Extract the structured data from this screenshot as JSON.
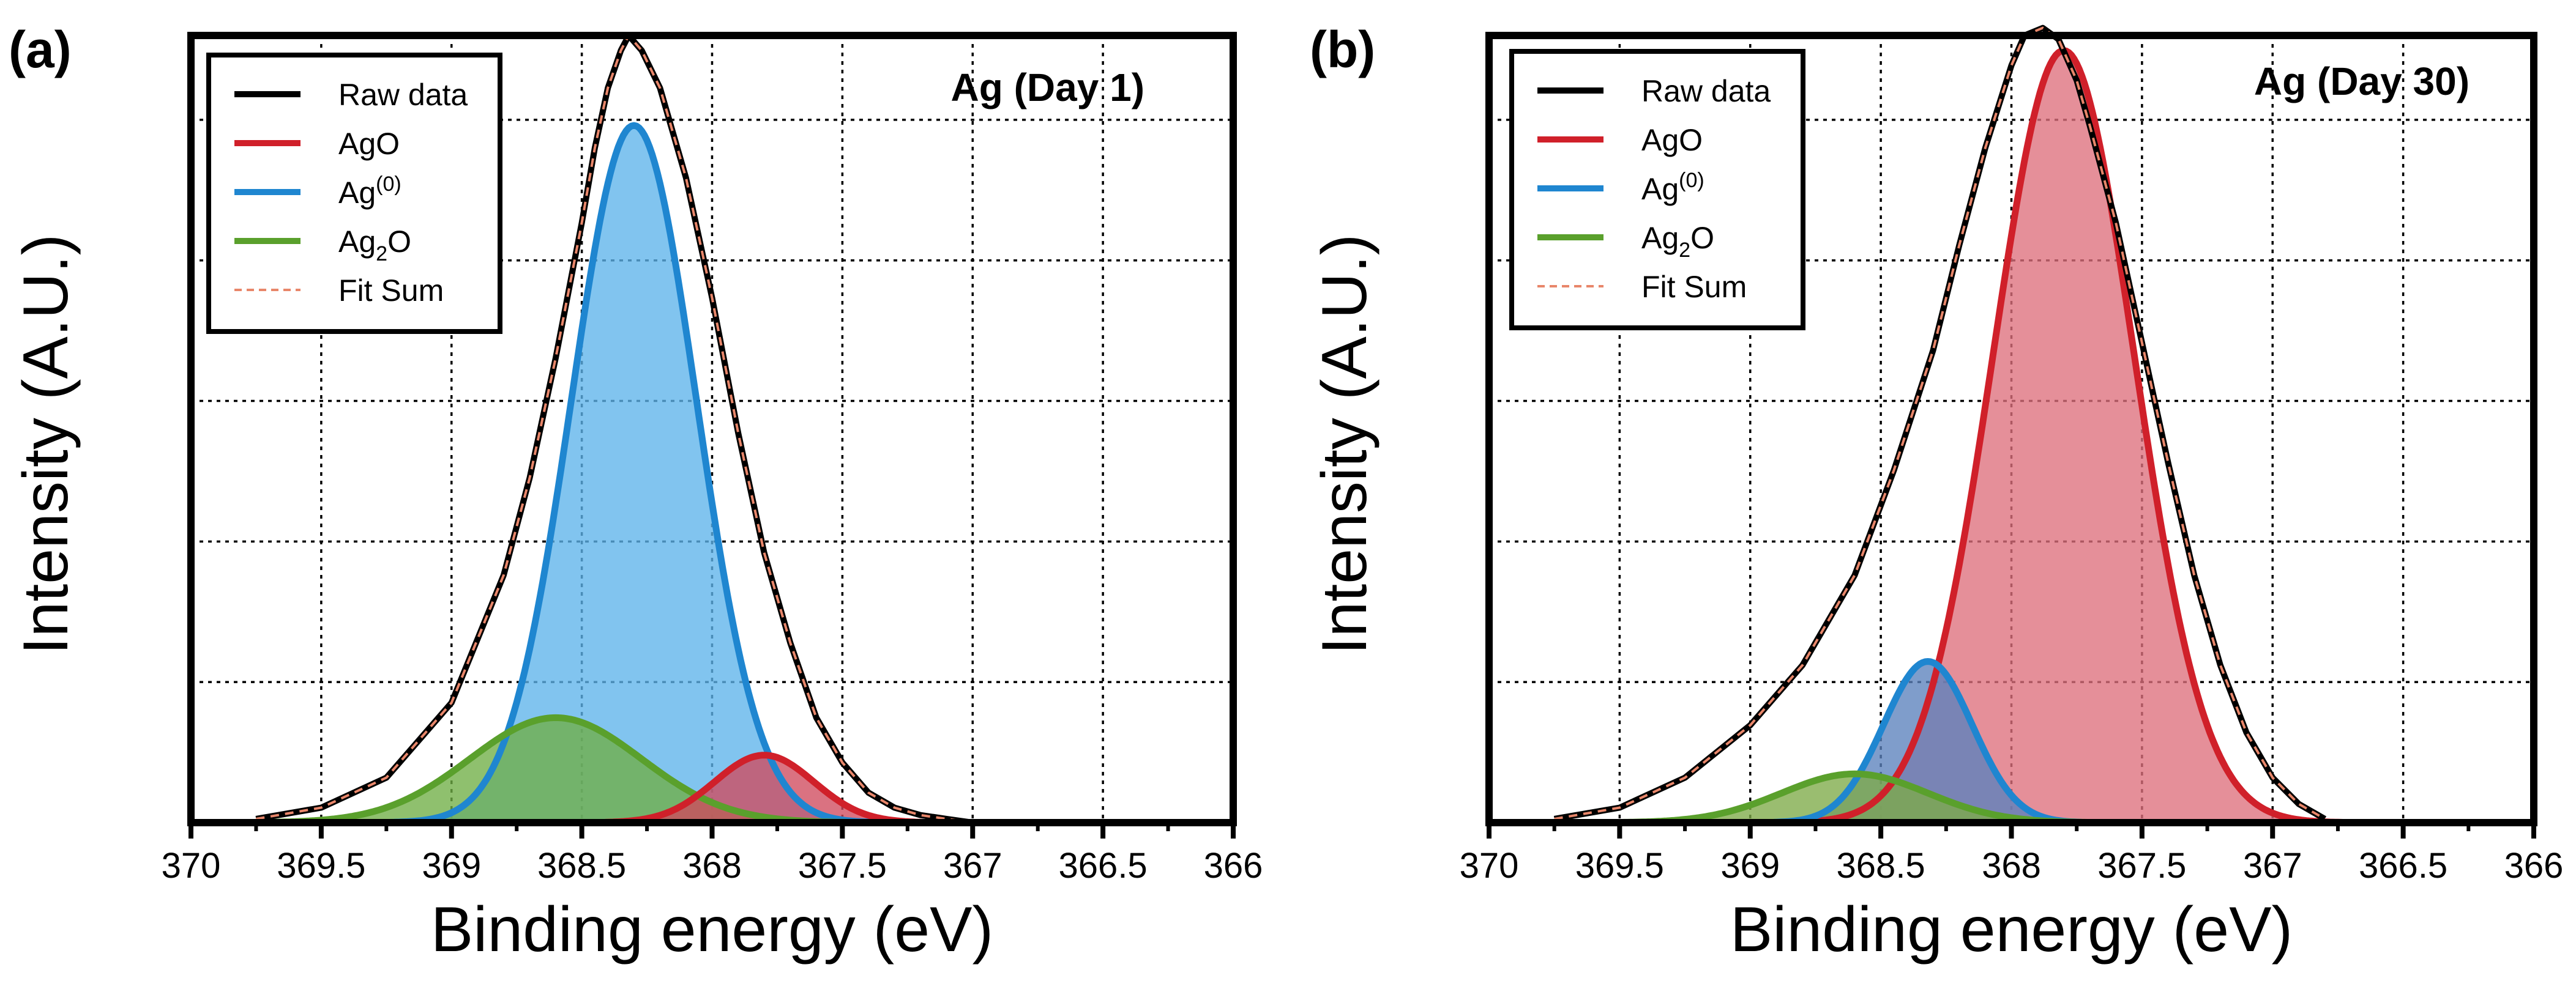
{
  "chart_data": [
    {
      "panel_label": "(a)",
      "type": "area",
      "title": "Ag (Day 1)",
      "xlabel": "Binding energy (eV)",
      "ylabel": "Intensity (A.U.)",
      "xlim": [
        370,
        366
      ],
      "x_reversed": true,
      "ylim": [
        0,
        1.05
      ],
      "y_ticks_labeled": false,
      "grid": true,
      "legend_position": "top-left",
      "x_tick_labels": [
        "370",
        "369.5",
        "369",
        "368.5",
        "368",
        "367.5",
        "367",
        "366.5",
        "366"
      ],
      "legend": [
        {
          "label": "Raw data",
          "style": "solid",
          "color": "#000000"
        },
        {
          "label": "AgO",
          "style": "solid",
          "color": "#d0202a"
        },
        {
          "label_main": "Ag",
          "label_sup": "(0)",
          "style": "solid",
          "color": "#1f86d0"
        },
        {
          "label_main": "Ag",
          "label_sub": "2",
          "label_rest": "O",
          "style": "solid",
          "color": "#5aa02c"
        },
        {
          "label": "Fit Sum",
          "style": "dashed",
          "color": "#e8866a"
        }
      ],
      "components": [
        {
          "name": "Ag(0)",
          "center": 368.3,
          "height": 0.93,
          "sigma": 0.24,
          "line_color": "#1f86d0",
          "fill_color": "#5db4ea"
        },
        {
          "name": "Ag2O",
          "center": 368.6,
          "height": 0.14,
          "sigma": 0.33,
          "line_color": "#5aa02c",
          "fill_color": "#6fae45"
        },
        {
          "name": "AgO",
          "center": 367.8,
          "height": 0.09,
          "sigma": 0.19,
          "line_color": "#d0202a",
          "fill_color": "#cf4a5e"
        }
      ],
      "raw_data": {
        "x": [
          369.75,
          369.5,
          369.25,
          369.0,
          368.8,
          368.7,
          368.6,
          368.5,
          368.45,
          368.4,
          368.35,
          368.32,
          368.27,
          368.2,
          368.1,
          368.0,
          367.9,
          367.8,
          367.7,
          367.6,
          367.5,
          367.4,
          367.3,
          367.2,
          367.1,
          367.0
        ],
        "y": [
          0.005,
          0.02,
          0.06,
          0.16,
          0.33,
          0.46,
          0.62,
          0.8,
          0.9,
          0.98,
          1.03,
          1.05,
          1.03,
          0.98,
          0.86,
          0.7,
          0.52,
          0.36,
          0.24,
          0.14,
          0.08,
          0.04,
          0.02,
          0.01,
          0.005,
          0.0
        ]
      }
    },
    {
      "panel_label": "(b)",
      "type": "area",
      "title": "Ag (Day 30)",
      "xlabel": "Binding energy (eV)",
      "ylabel": "Intensity (A.U.)",
      "xlim": [
        370,
        366
      ],
      "x_reversed": true,
      "ylim": [
        0,
        1.05
      ],
      "y_ticks_labeled": false,
      "grid": true,
      "legend_position": "top-left",
      "x_tick_labels": [
        "370",
        "369.5",
        "369",
        "368.5",
        "368",
        "367.5",
        "367",
        "366.5",
        "366"
      ],
      "legend": [
        {
          "label": "Raw data",
          "style": "solid",
          "color": "#000000"
        },
        {
          "label": "AgO",
          "style": "solid",
          "color": "#d0202a"
        },
        {
          "label_main": "Ag",
          "label_sup": "(0)",
          "style": "solid",
          "color": "#1f86d0"
        },
        {
          "label_main": "Ag",
          "label_sub": "2",
          "label_rest": "O",
          "style": "solid",
          "color": "#5aa02c"
        },
        {
          "label": "Fit Sum",
          "style": "dashed",
          "color": "#e8866a"
        }
      ],
      "components": [
        {
          "name": "AgO",
          "center": 367.8,
          "height": 1.03,
          "sigma": 0.27,
          "line_color": "#d0202a",
          "fill_color": "#de6f7c"
        },
        {
          "name": "Ag(0)",
          "center": 368.32,
          "height": 0.215,
          "sigma": 0.17,
          "line_color": "#1f86d0",
          "fill_color": "#5b82bd"
        },
        {
          "name": "Ag2O",
          "center": 368.6,
          "height": 0.065,
          "sigma": 0.28,
          "line_color": "#5aa02c",
          "fill_color": "#7eaa48"
        }
      ],
      "raw_data": {
        "x": [
          369.75,
          369.5,
          369.25,
          369.0,
          368.8,
          368.6,
          368.45,
          368.3,
          368.2,
          368.1,
          368.0,
          367.95,
          367.88,
          367.82,
          367.75,
          367.7,
          367.6,
          367.5,
          367.4,
          367.3,
          367.2,
          367.1,
          367.0,
          366.9,
          366.8
        ],
        "y": [
          0.005,
          0.02,
          0.06,
          0.13,
          0.21,
          0.33,
          0.47,
          0.63,
          0.77,
          0.9,
          1.01,
          1.05,
          1.06,
          1.045,
          0.99,
          0.93,
          0.8,
          0.64,
          0.48,
          0.33,
          0.21,
          0.12,
          0.06,
          0.025,
          0.005
        ]
      }
    }
  ]
}
